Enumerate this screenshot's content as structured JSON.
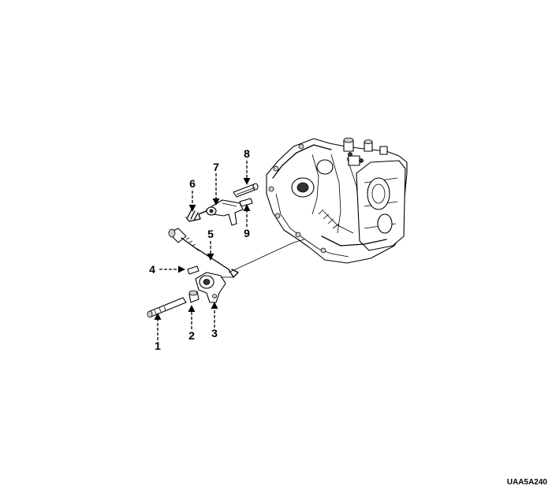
{
  "image_code": "UAA5A240",
  "callouts": [
    {
      "id": "1",
      "label": "1"
    },
    {
      "id": "2",
      "label": "2"
    },
    {
      "id": "3",
      "label": "3"
    },
    {
      "id": "4",
      "label": "4"
    },
    {
      "id": "5",
      "label": "5"
    },
    {
      "id": "6",
      "label": "6"
    },
    {
      "id": "7",
      "label": "7"
    },
    {
      "id": "8",
      "label": "8"
    },
    {
      "id": "9",
      "label": "9"
    }
  ]
}
